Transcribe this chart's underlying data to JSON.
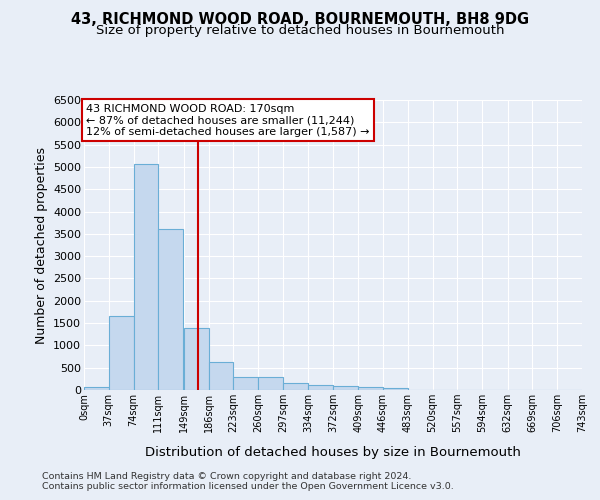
{
  "title1": "43, RICHMOND WOOD ROAD, BOURNEMOUTH, BH8 9DG",
  "title2": "Size of property relative to detached houses in Bournemouth",
  "xlabel": "Distribution of detached houses by size in Bournemouth",
  "ylabel": "Number of detached properties",
  "bin_labels": [
    "0sqm",
    "37sqm",
    "74sqm",
    "111sqm",
    "149sqm",
    "186sqm",
    "223sqm",
    "260sqm",
    "297sqm",
    "334sqm",
    "372sqm",
    "409sqm",
    "446sqm",
    "483sqm",
    "520sqm",
    "557sqm",
    "594sqm",
    "632sqm",
    "669sqm",
    "706sqm",
    "743sqm"
  ],
  "bin_edges": [
    0,
    37,
    74,
    111,
    149,
    186,
    223,
    260,
    297,
    334,
    372,
    409,
    446,
    483,
    520,
    557,
    594,
    632,
    669,
    706,
    743
  ],
  "bar_values": [
    75,
    1650,
    5070,
    3600,
    1400,
    620,
    300,
    295,
    150,
    120,
    90,
    60,
    40,
    10,
    5,
    5,
    2,
    2,
    1,
    1,
    0
  ],
  "bar_color": "#c5d8ee",
  "bar_edge_color": "#6aaed6",
  "property_size": 170,
  "vline_color": "#cc0000",
  "annotation_line1": "43 RICHMOND WOOD ROAD: 170sqm",
  "annotation_line2": "← 87% of detached houses are smaller (11,244)",
  "annotation_line3": "12% of semi-detached houses are larger (1,587) →",
  "annotation_box_facecolor": "#ffffff",
  "annotation_box_edgecolor": "#cc0000",
  "ylim_max": 6500,
  "yticks": [
    0,
    500,
    1000,
    1500,
    2000,
    2500,
    3000,
    3500,
    4000,
    4500,
    5000,
    5500,
    6000,
    6500
  ],
  "bg_color": "#e8eef7",
  "grid_color": "#ffffff",
  "footer1": "Contains HM Land Registry data © Crown copyright and database right 2024.",
  "footer2": "Contains public sector information licensed under the Open Government Licence v3.0."
}
